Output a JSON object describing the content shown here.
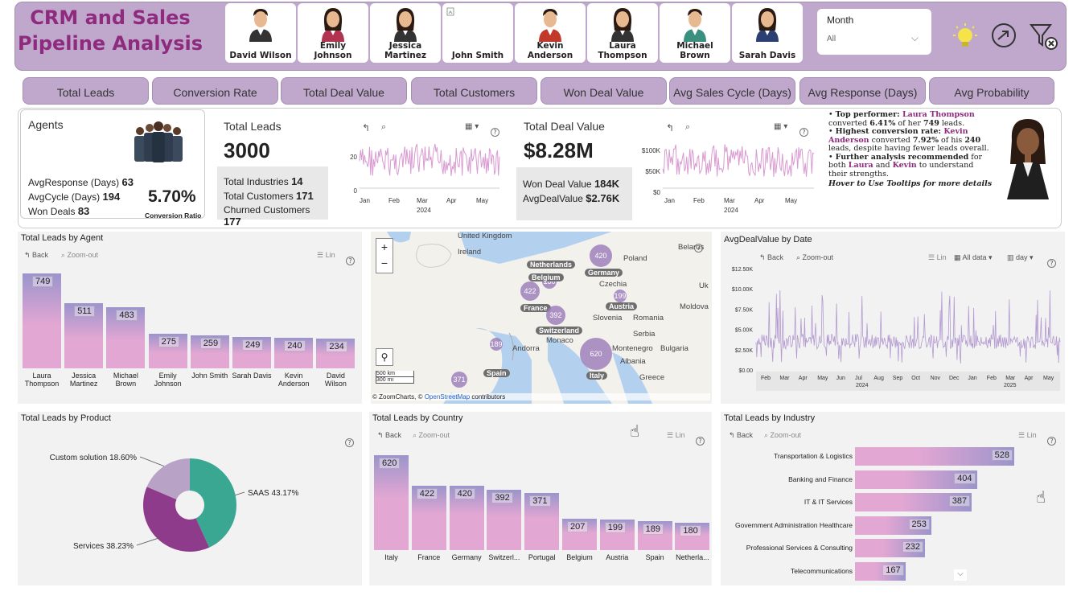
{
  "header": {
    "title_line1": "CRM and Sales",
    "title_line2": "Pipeline Analysis",
    "agents": [
      {
        "name_line1": "David Wilson",
        "name_line2": "",
        "gender": "m",
        "shirt": "#333"
      },
      {
        "name_line1": "Emily",
        "name_line2": "Johnson",
        "gender": "f",
        "shirt": "#b0334f"
      },
      {
        "name_line1": "Jessica",
        "name_line2": "Martinez",
        "gender": "f",
        "shirt": "#333"
      },
      {
        "name_line1": "John Smith",
        "name_line2": "",
        "gender": "none",
        "shirt": "#fff"
      },
      {
        "name_line1": "Kevin",
        "name_line2": "Anderson",
        "gender": "m",
        "shirt": "#c0392b"
      },
      {
        "name_line1": "Laura",
        "name_line2": "Thompson",
        "gender": "f",
        "shirt": "#333"
      },
      {
        "name_line1": "Michael",
        "name_line2": "Brown",
        "gender": "m",
        "shirt": "#3a8f7e"
      },
      {
        "name_line1": "Sarah Davis",
        "name_line2": "",
        "gender": "f",
        "shirt": "#2b3f73"
      }
    ],
    "month_label": "Month",
    "month_value": "All",
    "icons": [
      "lightbulb-icon",
      "arrow-circle-icon",
      "clear-filter-icon"
    ]
  },
  "tabs": [
    "Total Leads",
    "Conversion Rate",
    "Total Deal Value",
    "Total Customers",
    "Won Deal Value",
    "Avg Sales Cycle (Days)",
    "Avg Response (Days)",
    "Avg Probability"
  ],
  "agents_card": {
    "title": "Agents",
    "avg_response_label": "AvgResponse (Days)",
    "avg_response_value": "63",
    "avg_cycle_label": "AvgCycle (Days)",
    "avg_cycle_value": "194",
    "won_deals_label": "Won Deals",
    "won_deals_value": "83",
    "conversion_value": "5.70%",
    "conversion_label": "Conversion Ratio"
  },
  "total_leads": {
    "title": "Total Leads",
    "value": "3000",
    "industries_label": "Total Industries",
    "industries_value": "14",
    "customers_label": "Total Customers",
    "customers_value": "171",
    "churned_label": "Churned Customers",
    "churned_value": "177"
  },
  "leads_spark": {
    "y_ticks": [
      "20",
      "0"
    ],
    "x_ticks": [
      "Jan",
      "Feb",
      "Mar",
      "Apr",
      "May"
    ],
    "year": "2024"
  },
  "deal_value": {
    "title": "Total Deal Value",
    "value": "$8.28M",
    "won_label": "Won Deal Value",
    "won_value": "184K",
    "avg_label": "AvgDealValue",
    "avg_value": "$2.76K"
  },
  "deal_spark": {
    "y_ticks": [
      "$100K",
      "$50K",
      "$0"
    ],
    "x_ticks": [
      "Jan",
      "Feb",
      "Mar",
      "Apr",
      "May"
    ],
    "year": "2024"
  },
  "insights": {
    "p1_bold": "Top performer: ",
    "p1_name": "Laura Thompson",
    "p1_text_a": " converted ",
    "p1_pct": "6.41%",
    "p1_text_b": " of her ",
    "p1_num": "749",
    "p1_text_c": " leads.",
    "p2_bold": "Highest conversion rate: ",
    "p2_name": "Kevin Anderson",
    "p2_text_a": " converted ",
    "p2_pct": "7.92%",
    "p2_text_b": " of his ",
    "p2_num": "240",
    "p2_text_c": " leads, despite having fewer leads overall.",
    "p3_bold": "Further analysis recommended",
    "p3_text_a": " for both ",
    "p3_name1": "Laura",
    "p3_text_b": " and ",
    "p3_name2": "Kevin",
    "p3_text_c": " to understand their strengths.",
    "footer": "Hover to Use Tooltips for more details"
  },
  "agent_chart_panel": {
    "back": "Back",
    "zoom_out": "Zoom-out",
    "lin": "Lin"
  },
  "map_panel": {
    "countries": [
      "United Kingdom",
      "Ireland",
      "Poland",
      "Belarus",
      "Netherlands",
      "Belgium",
      "Germany",
      "Czechia",
      "France",
      "Austria",
      "Switzerland",
      "Slovenia",
      "Romania",
      "Moldova",
      "Serbia",
      "Monaco",
      "Andorra",
      "Montenegro",
      "Bulgaria",
      "Albania",
      "Spain",
      "Italy",
      "Greece",
      "Uk"
    ],
    "bubbles": [
      {
        "label": "Netherlands",
        "value": "180"
      },
      {
        "label": "Belgium",
        "value": ""
      },
      {
        "label": "Germany",
        "value": "420"
      },
      {
        "label": "France",
        "value": "422"
      },
      {
        "label": "Austria",
        "value": "199"
      },
      {
        "label": "Switzerland",
        "value": "392"
      },
      {
        "label": "Italy",
        "value": "620"
      },
      {
        "label": "Spain",
        "value": "189"
      },
      {
        "label": "Portugal",
        "value": "371"
      }
    ],
    "scale_km": "500 km",
    "scale_mi": "300 mi",
    "attr_a": "© ZoomCharts, © ",
    "attr_osm": "OpenStreetMap",
    "attr_b": " contributors"
  },
  "avg_deal_panel": {
    "title": "AvgDealValue by Date",
    "back": "Back",
    "zoom_out": "Zoom-out",
    "lin": "Lin",
    "all_data": "All data",
    "day": "day",
    "y_ticks": [
      "$12.50K",
      "$10.00K",
      "$7.50K",
      "$5.00K",
      "$2.50K",
      "$0.00"
    ],
    "x_ticks": [
      "Feb",
      "Mar",
      "Apr",
      "May",
      "Jun",
      "Jul",
      "Aug",
      "Sep",
      "Oct",
      "Nov",
      "Dec",
      "Jan",
      "Feb",
      "Mar",
      "Apr",
      "May"
    ],
    "year_1": "2024",
    "year_2": "2025"
  },
  "product_panel": {
    "title": "Total Leads by Product"
  },
  "country_panel": {
    "title": "Total Leads by Country",
    "back": "Back",
    "zoom_out": "Zoom-out",
    "lin": "Lin"
  },
  "industry_panel": {
    "title": "Total Leads by Industry",
    "back": "Back",
    "zoom_out": "Zoom-out",
    "lin": "Lin"
  },
  "colors": {
    "brand_purple": "#8f2b7e",
    "header_bg": "#bfa8cc",
    "bar_top": "#9b94cc",
    "bar_bottom": "#e3a7d3",
    "pie_saas": "#3aa792",
    "pie_services": "#8e3b8c",
    "pie_custom": "#b8a3c6"
  },
  "chart_data": [
    {
      "type": "bar",
      "title": "Total Leads by Agent",
      "categories": [
        "Laura Thompson",
        "Jessica Martinez",
        "Michael Brown",
        "Emily Johnson",
        "John Smith",
        "Sarah Davis",
        "Kevin Anderson",
        "David Wilson"
      ],
      "values": [
        749,
        511,
        483,
        275,
        259,
        249,
        240,
        234
      ]
    },
    {
      "type": "pie",
      "title": "Total Leads by Product",
      "categories": [
        "SAAS",
        "Services",
        "Custom solution"
      ],
      "values": [
        43.17,
        38.23,
        18.6
      ],
      "labels": [
        "SAAS 43.17%",
        "Services 38.23%",
        "Custom solution 18.60%"
      ]
    },
    {
      "type": "bar",
      "title": "Total Leads by Country",
      "categories": [
        "Italy",
        "France",
        "Germany",
        "Switzerl...",
        "Portugal",
        "Belgium",
        "Austria",
        "Spain",
        "Netherla..."
      ],
      "values": [
        620,
        422,
        420,
        392,
        371,
        207,
        199,
        189,
        180
      ]
    },
    {
      "type": "bar",
      "title": "Total Leads by Industry",
      "orientation": "horizontal",
      "categories": [
        "Transportation & Logistics",
        "Banking and Finance",
        "IT & IT Services",
        "Government Administration Healthcare",
        "Professional Services & Consulting",
        "Telecommunications"
      ],
      "values": [
        528,
        404,
        387,
        253,
        232,
        167
      ]
    }
  ]
}
